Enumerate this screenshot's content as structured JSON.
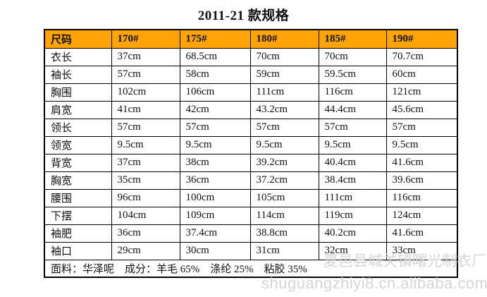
{
  "title": "2011-21 款规格",
  "table": {
    "header": [
      "尺码",
      "170#",
      "175#",
      "180#",
      "185#",
      "190#"
    ],
    "rows": [
      {
        "label": "衣长",
        "values": [
          "37cm",
          "68.5cm",
          "70cm",
          "70cm",
          "70.7cm"
        ]
      },
      {
        "label": "袖长",
        "values": [
          "57cm",
          "58cm",
          "59cm",
          "59.5cm",
          "60cm"
        ]
      },
      {
        "label": "胸围",
        "values": [
          "102cm",
          "106cm",
          "111cm",
          "116cm",
          "121cm"
        ]
      },
      {
        "label": "肩宽",
        "values": [
          "41cm",
          "42cm",
          "43.2cm",
          "44.4cm",
          "45.6cm"
        ]
      },
      {
        "label": "领长",
        "values": [
          "57cm",
          "57cm",
          "57cm",
          "57cm",
          "57cm"
        ]
      },
      {
        "label": "领宽",
        "values": [
          "9.5cm",
          "9.5cm",
          "9.5cm",
          "9.5cm",
          "9.5cm"
        ]
      },
      {
        "label": "背宽",
        "values": [
          "37cm",
          "38cm",
          "39.2cm",
          "40.4cm",
          "41.6cm"
        ]
      },
      {
        "label": "胸宽",
        "values": [
          "35cm",
          "36cm",
          "37.2cm",
          "38.4cm",
          "39.6cm"
        ]
      },
      {
        "label": "腰围",
        "values": [
          "96cm",
          "100cm",
          "105cm",
          "111cm",
          "116cm"
        ]
      },
      {
        "label": "下摆",
        "values": [
          "104cm",
          "109cm",
          "114cm",
          "119cm",
          "124cm"
        ]
      },
      {
        "label": "袖肥",
        "values": [
          "36cm",
          "37.4cm",
          "38.8cm",
          "40.2cm",
          "41.6cm"
        ]
      },
      {
        "label": "袖口",
        "values": [
          "29cm",
          "30cm",
          "31cm",
          "32cm",
          "33cm"
        ]
      }
    ],
    "footer": "面料：华泽呢　成分：羊毛 65%　涤纶 25%　粘胶 35%"
  },
  "watermark": {
    "factory": "夏邑县城关镇曙光制衣厂",
    "url": "shuguangzhiyi8.cn.alibaba.com"
  },
  "colors": {
    "header_bg": "#FFA405",
    "border": "#000000",
    "watermark": "#D6D6D6"
  }
}
